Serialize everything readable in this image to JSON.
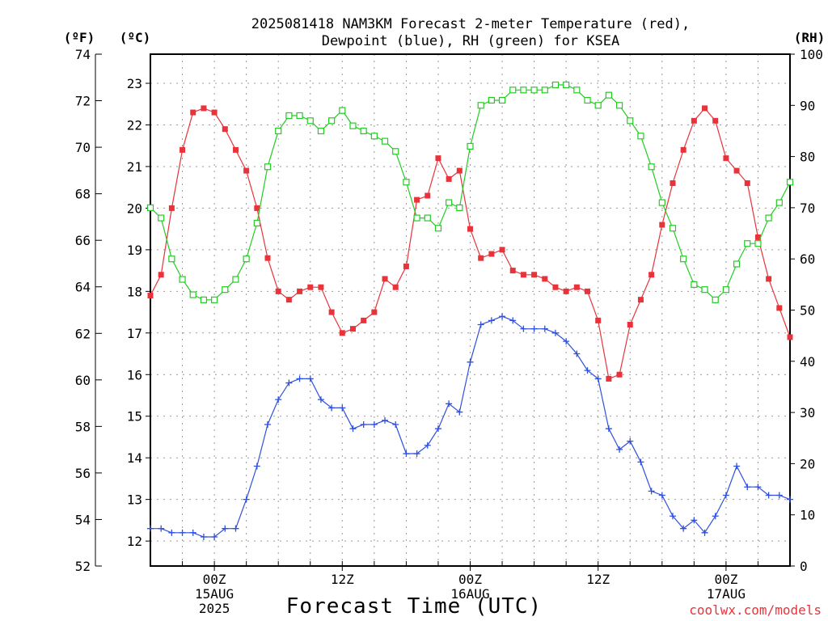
{
  "title_line1": "2025081418 NAM3KM Forecast 2-meter Temperature (red),",
  "title_line2": "Dewpoint (blue), RH (green) for KSEA",
  "units": {
    "fahrenheit": "(ºF)",
    "celsius": "(ºC)",
    "rh": "(RH)"
  },
  "x_axis_title": "Forecast Time (UTC)",
  "credit": "coolwx.com/models",
  "colors": {
    "temperature": "#e8333a",
    "dewpoint": "#2f4fe0",
    "rh": "#22cc22",
    "grid": "#999999"
  },
  "chart_data": {
    "type": "line",
    "title": "2025081418 NAM3KM Forecast 2-meter Temperature (red), Dewpoint (blue), RH (green) for KSEA",
    "xlabel": "Forecast Time (UTC)",
    "x_unit": "forecast hour (valid time = 2025-08-14 18Z + hour)",
    "x_range": [
      0,
      60
    ],
    "x_ticks": [
      {
        "hour": 6,
        "label": "00Z",
        "label2": "15AUG",
        "label3": "2025"
      },
      {
        "hour": 18,
        "label": "12Z",
        "label2": "",
        "label3": ""
      },
      {
        "hour": 30,
        "label": "00Z",
        "label2": "16AUG",
        "label3": ""
      },
      {
        "hour": 42,
        "label": "12Z",
        "label2": "",
        "label3": ""
      },
      {
        "hour": 54,
        "label": "00Z",
        "label2": "17AUG",
        "label3": ""
      }
    ],
    "y_left_celsius": {
      "range": [
        11.4,
        23.7
      ],
      "ticks": [
        12,
        13,
        14,
        15,
        16,
        17,
        18,
        19,
        20,
        21,
        22,
        23
      ]
    },
    "y_left_fahrenheit": {
      "range": [
        52,
        74
      ],
      "ticks": [
        52,
        54,
        56,
        58,
        60,
        62,
        64,
        66,
        68,
        70,
        72,
        74
      ]
    },
    "y_right_rh": {
      "range": [
        0,
        100
      ],
      "ticks": [
        0,
        10,
        20,
        30,
        40,
        50,
        60,
        70,
        80,
        90,
        100
      ]
    },
    "grid": true,
    "x": [
      0,
      1,
      2,
      3,
      4,
      5,
      6,
      7,
      8,
      9,
      10,
      11,
      12,
      13,
      14,
      15,
      16,
      17,
      18,
      19,
      20,
      21,
      22,
      23,
      24,
      25,
      26,
      27,
      28,
      29,
      30,
      31,
      32,
      33,
      34,
      35,
      36,
      37,
      38,
      39,
      40,
      41,
      42,
      43,
      44,
      45,
      46,
      47,
      48,
      49,
      50,
      51,
      52,
      53,
      54,
      55,
      56,
      57,
      58,
      59,
      60
    ],
    "series": [
      {
        "key": "temperature",
        "unit": "C",
        "marker": "filled-square",
        "values": [
          17.9,
          18.4,
          20.0,
          21.4,
          22.3,
          22.4,
          22.3,
          21.9,
          21.4,
          20.9,
          20.0,
          18.8,
          18.0,
          17.8,
          18.0,
          18.1,
          18.1,
          17.5,
          17.0,
          17.1,
          17.3,
          17.5,
          18.3,
          18.1,
          18.6,
          20.2,
          20.3,
          21.2,
          20.7,
          20.9,
          19.5,
          18.8,
          18.9,
          19.0,
          18.5,
          18.4,
          18.4,
          18.3,
          18.1,
          18.0,
          18.1,
          18.0,
          17.3,
          15.9,
          16.0,
          17.2,
          17.8,
          18.4,
          19.6,
          20.6,
          21.4,
          22.1,
          22.4,
          22.1,
          21.2,
          20.9,
          20.6,
          19.3,
          18.3,
          17.6,
          16.9
        ]
      },
      {
        "key": "dewpoint",
        "unit": "C",
        "marker": "plus",
        "values": [
          12.3,
          12.3,
          12.2,
          12.2,
          12.2,
          12.1,
          12.1,
          12.3,
          12.3,
          13.0,
          13.8,
          14.8,
          15.4,
          15.8,
          15.9,
          15.9,
          15.4,
          15.2,
          15.2,
          14.7,
          14.8,
          14.8,
          14.9,
          14.8,
          14.1,
          14.1,
          14.3,
          14.7,
          15.3,
          15.1,
          16.3,
          17.2,
          17.3,
          17.4,
          17.3,
          17.1,
          17.1,
          17.1,
          17.0,
          16.8,
          16.5,
          16.1,
          15.9,
          14.7,
          14.2,
          14.4,
          13.9,
          13.2,
          13.1,
          12.6,
          12.3,
          12.5,
          12.2,
          12.6,
          13.1,
          13.8,
          13.3,
          13.3,
          13.1,
          13.1,
          13.0
        ]
      },
      {
        "key": "rh",
        "unit": "%",
        "marker": "open-square",
        "values": [
          70,
          68,
          60,
          56,
          53,
          52,
          52,
          54,
          56,
          60,
          67,
          78,
          85,
          88,
          88,
          87,
          85,
          87,
          89,
          86,
          85,
          84,
          83,
          81,
          75,
          68,
          68,
          66,
          71,
          70,
          82,
          90,
          91,
          91,
          93,
          93,
          93,
          93,
          94,
          94,
          93,
          91,
          90,
          92,
          90,
          87,
          84,
          78,
          71,
          66,
          60,
          55,
          54,
          52,
          54,
          59,
          63,
          63,
          68,
          71,
          75
        ]
      }
    ]
  }
}
